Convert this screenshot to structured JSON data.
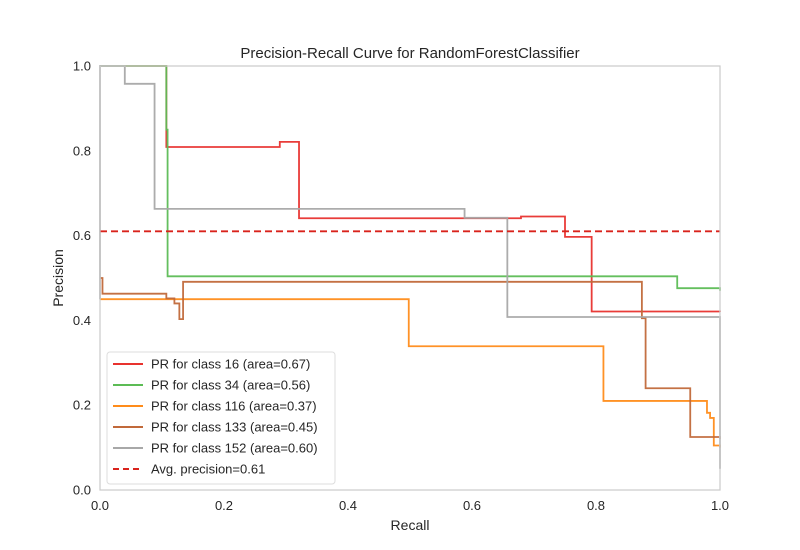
{
  "chart_data": {
    "type": "line",
    "title": "Precision-Recall Curve for RandomForestClassifier",
    "xlabel": "Recall",
    "ylabel": "Precision",
    "xlim": [
      0.0,
      1.0
    ],
    "ylim": [
      0.0,
      1.0
    ],
    "xticks": [
      "0.0",
      "0.2",
      "0.4",
      "0.6",
      "0.8",
      "1.0"
    ],
    "yticks": [
      "0.0",
      "0.2",
      "0.4",
      "0.6",
      "0.8",
      "1.0"
    ],
    "grid": false,
    "legend_position": "lower-left",
    "series": [
      {
        "name": "PR for class 16 (area=0.67)",
        "color": "#e8322e",
        "step": "post",
        "x": [
          0.0,
          0.0,
          0.107,
          0.107,
          0.29,
          0.29,
          0.321,
          0.321,
          0.679,
          0.679,
          0.75,
          0.75,
          0.793,
          0.793,
          1.0,
          1.0
        ],
        "y": [
          1.0,
          1.0,
          1.0,
          0.809,
          0.809,
          0.821,
          0.821,
          0.641,
          0.641,
          0.645,
          0.645,
          0.597,
          0.597,
          0.421,
          0.421,
          0.42
        ]
      },
      {
        "name": "PR for class 34 (area=0.56)",
        "color": "#5cbc55",
        "step": "post",
        "x": [
          0.0,
          0.107,
          0.107,
          0.109,
          0.109,
          0.931,
          0.931,
          1.0,
          1.0
        ],
        "y": [
          1.0,
          1.0,
          0.85,
          0.85,
          0.504,
          0.504,
          0.476,
          0.476,
          0.47
        ]
      },
      {
        "name": "PR for class 116 (area=0.37)",
        "color": "#ff8c1a",
        "step": "post",
        "x": [
          0.0,
          0.0,
          0.498,
          0.498,
          0.812,
          0.812,
          0.979,
          0.979,
          0.984,
          0.984,
          0.99,
          0.99,
          1.0,
          1.0
        ],
        "y": [
          0.45,
          0.45,
          0.45,
          0.339,
          0.339,
          0.21,
          0.21,
          0.182,
          0.182,
          0.17,
          0.17,
          0.105,
          0.105,
          0.1
        ]
      },
      {
        "name": "PR for class 133 (area=0.45)",
        "color": "#c1693a",
        "step": "post",
        "x": [
          0.0,
          0.0,
          0.004,
          0.004,
          0.107,
          0.107,
          0.12,
          0.12,
          0.128,
          0.128,
          0.134,
          0.134,
          0.874,
          0.874,
          0.88,
          0.88,
          0.952,
          0.952,
          1.0,
          1.0
        ],
        "y": [
          0.5,
          0.5,
          0.5,
          0.463,
          0.463,
          0.452,
          0.452,
          0.44,
          0.44,
          0.403,
          0.403,
          0.491,
          0.491,
          0.405,
          0.405,
          0.24,
          0.24,
          0.125,
          0.125,
          0.12
        ]
      },
      {
        "name": "PR for class 152 (area=0.60)",
        "color": "#a8a8a8",
        "step": "post",
        "x": [
          0.0,
          0.0,
          0.04,
          0.04,
          0.088,
          0.088,
          0.588,
          0.588,
          0.657,
          0.657,
          1.0,
          1.0
        ],
        "y": [
          0.45,
          1.0,
          1.0,
          0.958,
          0.958,
          0.663,
          0.663,
          0.642,
          0.642,
          0.408,
          0.408,
          0.05
        ]
      }
    ],
    "reference_lines": [
      {
        "name": "Avg. precision=0.61",
        "orientation": "horizontal",
        "y": 0.61,
        "color": "#d9231c",
        "style": "dashed"
      }
    ]
  }
}
